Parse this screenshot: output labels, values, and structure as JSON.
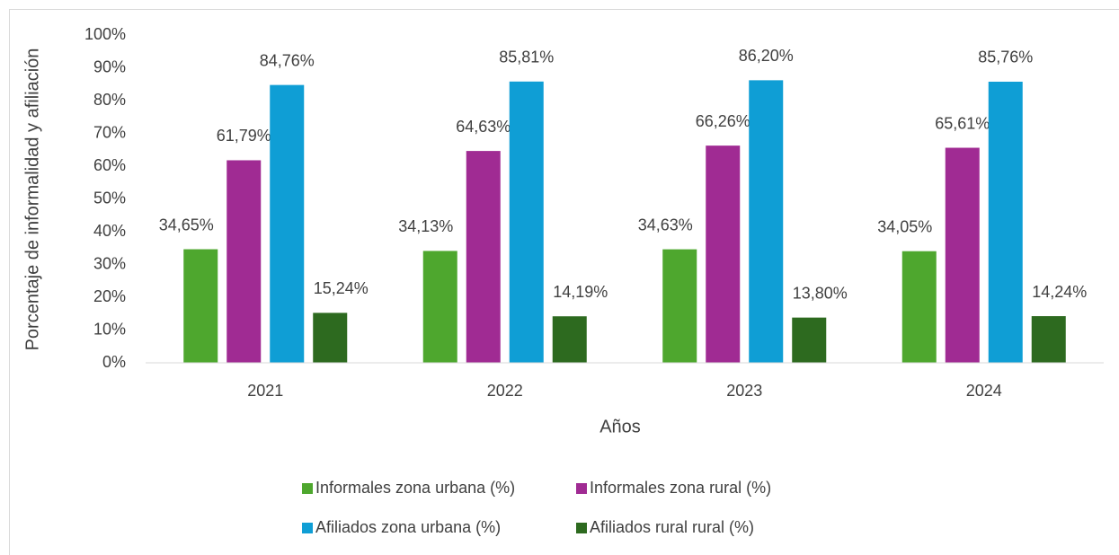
{
  "chart_data": {
    "type": "bar",
    "x_label": "Años",
    "y_label": "Porcentaje de informalidad y afiliación",
    "categories": [
      "2021",
      "2022",
      "2023",
      "2024"
    ],
    "series": [
      {
        "name": "Informales zona urbana (%)",
        "color": "#4ea72e",
        "values": [
          34.65,
          34.13,
          34.63,
          34.05
        ],
        "value_labels": [
          "34,65%",
          "34,13%",
          "34,63%",
          "34,05%"
        ]
      },
      {
        "name": "Informales zona rural (%)",
        "color": "#a02b93",
        "values": [
          61.79,
          64.63,
          66.26,
          65.61
        ],
        "value_labels": [
          "61,79%",
          "64,63%",
          "66,26%",
          "65,61%"
        ]
      },
      {
        "name": "Afiliados zona urbana (%)",
        "color": "#0f9ed5",
        "values": [
          84.76,
          85.81,
          86.2,
          85.76
        ],
        "value_labels": [
          "84,76%",
          "85,81%",
          "86,20%",
          "85,76%"
        ]
      },
      {
        "name": "Afiliados rural rural (%)",
        "color": "#2d6a1f",
        "values": [
          15.24,
          14.19,
          13.8,
          14.24
        ],
        "value_labels": [
          "15,24%",
          "14,19%",
          "13,80%",
          "14,24%"
        ]
      }
    ],
    "ylim": [
      0,
      100
    ],
    "yticks": [
      {
        "value": 0,
        "label": "0%"
      },
      {
        "value": 10,
        "label": "10%"
      },
      {
        "value": 20,
        "label": "20%"
      },
      {
        "value": 30,
        "label": "30%"
      },
      {
        "value": 40,
        "label": "40%"
      },
      {
        "value": 50,
        "label": "50%"
      },
      {
        "value": 60,
        "label": "60%"
      },
      {
        "value": 70,
        "label": "70%"
      },
      {
        "value": 80,
        "label": "80%"
      },
      {
        "value": 90,
        "label": "90%"
      },
      {
        "value": 100,
        "label": "100%"
      }
    ],
    "grid": false,
    "legend": "bottom"
  }
}
